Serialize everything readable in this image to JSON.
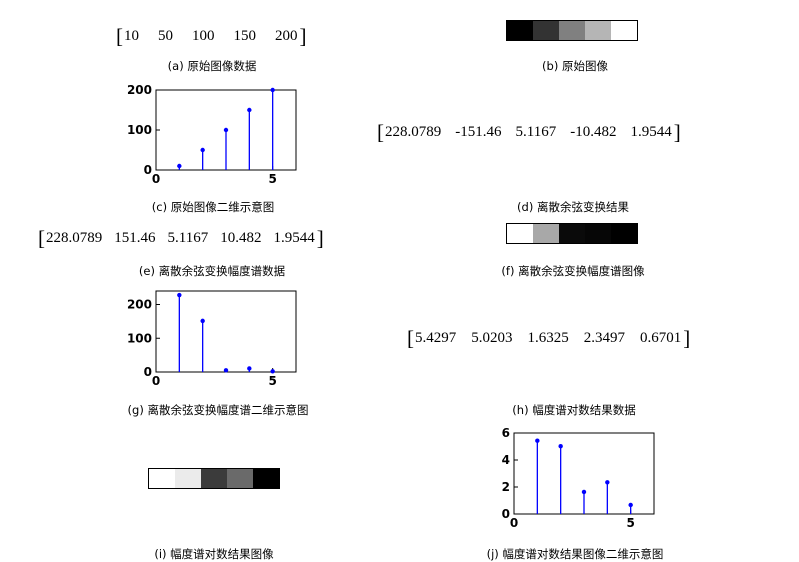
{
  "panels": {
    "a": {
      "values": [
        "10",
        "50",
        "100",
        "150",
        "200"
      ],
      "caption": "(a)  原始图像数据"
    },
    "b": {
      "gray_colors": [
        "#000000",
        "#333333",
        "#808080",
        "#b5b5b5",
        "#ffffff"
      ],
      "caption": "(b)  原始图像"
    },
    "c": {
      "caption": "(c)  原始图像二维示意图"
    },
    "d": {
      "values": [
        "228.0789",
        "-151.46",
        "5.1167",
        "-10.482",
        "1.9544"
      ],
      "caption": "(d)  离散余弦变换结果"
    },
    "e": {
      "values": [
        "228.0789",
        "151.46",
        "5.1167",
        "10.482",
        "1.9544"
      ],
      "caption": "(e)  离散余弦变换幅度谱数据"
    },
    "f": {
      "gray_colors": [
        "#ffffff",
        "#a8a8a8",
        "#0a0a0a",
        "#060606",
        "#000000"
      ],
      "caption": "(f)  离散余弦变换幅度谱图像"
    },
    "g": {
      "caption": "(g)  离散余弦变换幅度谱二维示意图"
    },
    "h": {
      "values": [
        "5.4297",
        "5.0203",
        "1.6325",
        "2.3497",
        "0.6701"
      ],
      "caption": "(h)  幅度谱对数结果数据"
    },
    "i": {
      "gray_colors": [
        "#ffffff",
        "#ebebeb",
        "#3b3b3b",
        "#6a6a6a",
        "#000000"
      ],
      "caption": "(i)  幅度谱对数结果图像"
    },
    "j": {
      "caption": "(j)  幅度谱对数结果图像二维示意图"
    }
  },
  "chart_data": [
    {
      "id": "c",
      "type": "stem",
      "x": [
        1,
        2,
        3,
        4,
        5
      ],
      "values": [
        10,
        50,
        100,
        150,
        200
      ],
      "xlim": [
        0,
        6
      ],
      "ylim": [
        0,
        200
      ],
      "xticks": [
        0,
        5
      ],
      "yticks": [
        0,
        100,
        200
      ],
      "color": "#0000ff"
    },
    {
      "id": "g",
      "type": "stem",
      "x": [
        1,
        2,
        3,
        4,
        5
      ],
      "values": [
        228.0789,
        151.46,
        5.1167,
        10.482,
        1.9544
      ],
      "xlim": [
        0,
        6
      ],
      "ylim": [
        0,
        240
      ],
      "xticks": [
        0,
        5
      ],
      "yticks": [
        0,
        100,
        200
      ],
      "color": "#0000ff"
    },
    {
      "id": "j",
      "type": "stem",
      "x": [
        1,
        2,
        3,
        4,
        5
      ],
      "values": [
        5.4297,
        5.0203,
        1.6325,
        2.3497,
        0.6701
      ],
      "xlim": [
        0,
        6
      ],
      "ylim": [
        0,
        6
      ],
      "xticks": [
        0,
        5
      ],
      "yticks": [
        0,
        2,
        4,
        6
      ],
      "color": "#0000ff"
    }
  ]
}
